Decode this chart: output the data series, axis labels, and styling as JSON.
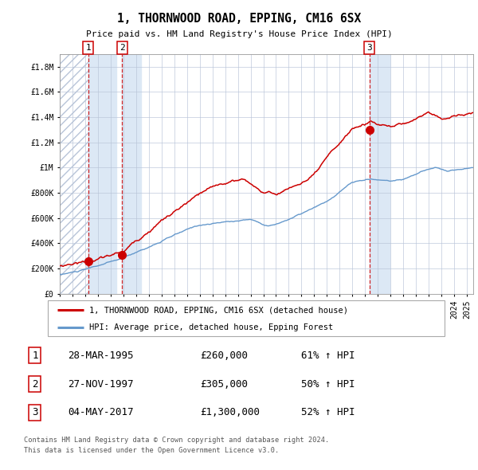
{
  "title": "1, THORNWOOD ROAD, EPPING, CM16 6SX",
  "subtitle": "Price paid vs. HM Land Registry's House Price Index (HPI)",
  "hpi_label": "HPI: Average price, detached house, Epping Forest",
  "property_label": "1, THORNWOOD ROAD, EPPING, CM16 6SX (detached house)",
  "footer_line1": "Contains HM Land Registry data © Crown copyright and database right 2024.",
  "footer_line2": "This data is licensed under the Open Government Licence v3.0.",
  "ylim": [
    0,
    1900000
  ],
  "yticks": [
    0,
    200000,
    400000,
    600000,
    800000,
    1000000,
    1200000,
    1400000,
    1600000,
    1800000
  ],
  "ytick_labels": [
    "£0",
    "£200K",
    "£400K",
    "£600K",
    "£800K",
    "£1M",
    "£1.2M",
    "£1.4M",
    "£1.6M",
    "£1.8M"
  ],
  "xlim_start": 1993.0,
  "xlim_end": 2025.5,
  "sales": [
    {
      "num": 1,
      "date": "28-MAR-1995",
      "year": 1995.24,
      "price": 260000,
      "hpi_pct": "61% ↑ HPI"
    },
    {
      "num": 2,
      "date": "27-NOV-1997",
      "year": 1997.91,
      "price": 305000,
      "hpi_pct": "50% ↑ HPI"
    },
    {
      "num": 3,
      "date": "04-MAY-2017",
      "year": 2017.34,
      "price": 1300000,
      "hpi_pct": "52% ↑ HPI"
    }
  ],
  "hpi_color": "#6699cc",
  "property_color": "#cc0000",
  "highlight_color": "#dce8f5",
  "grid_color": "#b8c4d8",
  "bg_color": "#ffffff"
}
